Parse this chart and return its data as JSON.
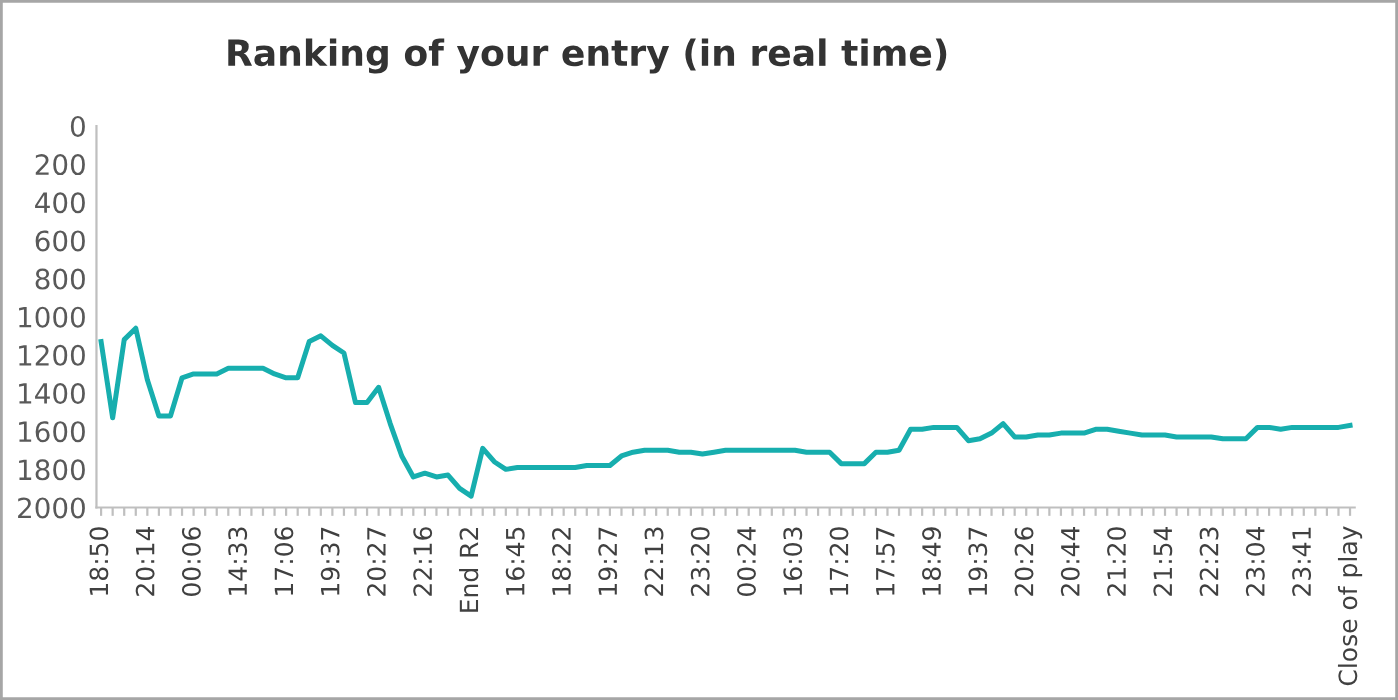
{
  "chart_data": {
    "type": "line",
    "title": "Ranking of your entry (in real time)",
    "categories": [
      "18:50",
      null,
      null,
      null,
      "20:14",
      null,
      null,
      null,
      "00:06",
      null,
      null,
      null,
      "14:33",
      null,
      null,
      null,
      "17:06",
      null,
      null,
      null,
      "19:37",
      null,
      null,
      null,
      "20:27",
      null,
      null,
      null,
      "22:16",
      null,
      null,
      null,
      "End R2",
      null,
      null,
      null,
      "16:45",
      null,
      null,
      null,
      "18:22",
      null,
      null,
      null,
      "19:27",
      null,
      null,
      null,
      "22:13",
      null,
      null,
      null,
      "23:20",
      null,
      null,
      null,
      "00:24",
      null,
      null,
      null,
      "16:03",
      null,
      null,
      null,
      "17:20",
      null,
      null,
      null,
      "17:57",
      null,
      null,
      null,
      "18:49",
      null,
      null,
      null,
      "19:37",
      null,
      null,
      null,
      "20:26",
      null,
      null,
      null,
      "20:44",
      null,
      null,
      null,
      "21:20",
      null,
      null,
      null,
      "21:54",
      null,
      null,
      null,
      "22:23",
      null,
      null,
      null,
      "23:04",
      null,
      null,
      null,
      "23:41",
      null,
      null,
      null,
      "Close of play"
    ],
    "series": [
      {
        "color": "#17aeae",
        "values": [
          1130,
          1530,
          1120,
          1060,
          1330,
          1520,
          1520,
          1320,
          1300,
          1300,
          1300,
          1270,
          1270,
          1270,
          1270,
          1300,
          1320,
          1320,
          1130,
          1100,
          1150,
          1190,
          1450,
          1450,
          1370,
          1560,
          1730,
          1840,
          1820,
          1840,
          1830,
          1900,
          1940,
          1690,
          1760,
          1800,
          1790,
          1790,
          1790,
          1790,
          1790,
          1790,
          1780,
          1780,
          1780,
          1730,
          1710,
          1700,
          1700,
          1700,
          1710,
          1710,
          1720,
          1710,
          1700,
          1700,
          1700,
          1700,
          1700,
          1700,
          1700,
          1710,
          1710,
          1710,
          1770,
          1770,
          1770,
          1710,
          1710,
          1700,
          1590,
          1590,
          1580,
          1580,
          1580,
          1650,
          1640,
          1610,
          1560,
          1630,
          1630,
          1620,
          1620,
          1610,
          1610,
          1610,
          1590,
          1590,
          1600,
          1610,
          1620,
          1620,
          1620,
          1630,
          1630,
          1630,
          1630,
          1640,
          1640,
          1640,
          1580,
          1580,
          1590,
          1580,
          1580,
          1580,
          1580,
          1580,
          1570
        ]
      }
    ],
    "ylim": [
      2000,
      0
    ],
    "yticks": [
      0,
      200,
      400,
      600,
      800,
      1000,
      1200,
      1400,
      1600,
      1800,
      2000
    ],
    "grid": false,
    "marker": "none",
    "line_style": "solid"
  }
}
